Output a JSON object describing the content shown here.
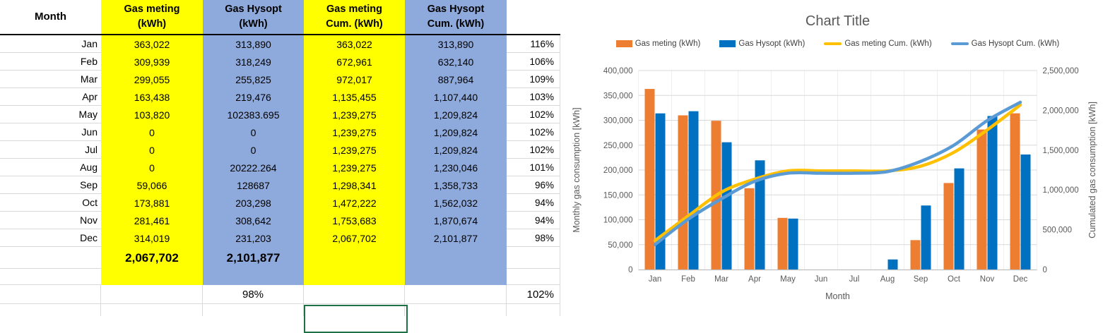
{
  "table": {
    "header": {
      "month_label": "Month",
      "cols": [
        {
          "line1": "Gas meting",
          "line2": "(kWh)",
          "fill": "#FFFF00"
        },
        {
          "line1": "Gas Hysopt",
          "line2": "(kWh)",
          "fill": "#8EA9DB"
        },
        {
          "line1": "Gas meting",
          "line2": "Cum. (kWh)",
          "fill": "#FFFF00"
        },
        {
          "line1": "Gas Hysopt",
          "line2": "Cum. (kWh)",
          "fill": "#8EA9DB"
        }
      ]
    },
    "rows": [
      {
        "month": "Jan",
        "meting": "363,022",
        "hysopt": "313,890",
        "meting_cum": "363,022",
        "hysopt_cum": "313,890",
        "pct": "116%"
      },
      {
        "month": "Feb",
        "meting": "309,939",
        "hysopt": "318,249",
        "meting_cum": "672,961",
        "hysopt_cum": "632,140",
        "pct": "106%"
      },
      {
        "month": "Mar",
        "meting": "299,055",
        "hysopt": "255,825",
        "meting_cum": "972,017",
        "hysopt_cum": "887,964",
        "pct": "109%"
      },
      {
        "month": "Apr",
        "meting": "163,438",
        "hysopt": "219,476",
        "meting_cum": "1,135,455",
        "hysopt_cum": "1,107,440",
        "pct": "103%"
      },
      {
        "month": "May",
        "meting": "103,820",
        "hysopt": "102383.695",
        "meting_cum": "1,239,275",
        "hysopt_cum": "1,209,824",
        "pct": "102%"
      },
      {
        "month": "Jun",
        "meting": "0",
        "hysopt": "0",
        "meting_cum": "1,239,275",
        "hysopt_cum": "1,209,824",
        "pct": "102%"
      },
      {
        "month": "Jul",
        "meting": "0",
        "hysopt": "0",
        "meting_cum": "1,239,275",
        "hysopt_cum": "1,209,824",
        "pct": "102%"
      },
      {
        "month": "Aug",
        "meting": "0",
        "hysopt": "20222.264",
        "meting_cum": "1,239,275",
        "hysopt_cum": "1,230,046",
        "pct": "101%"
      },
      {
        "month": "Sep",
        "meting": "59,066",
        "hysopt": "128687",
        "meting_cum": "1,298,341",
        "hysopt_cum": "1,358,733",
        "pct": "96%"
      },
      {
        "month": "Oct",
        "meting": "173,881",
        "hysopt": "203,298",
        "meting_cum": "1,472,222",
        "hysopt_cum": "1,562,032",
        "pct": "94%"
      },
      {
        "month": "Nov",
        "meting": "281,461",
        "hysopt": "308,642",
        "meting_cum": "1,753,683",
        "hysopt_cum": "1,870,674",
        "pct": "94%"
      },
      {
        "month": "Dec",
        "meting": "314,019",
        "hysopt": "231,203",
        "meting_cum": "2,067,702",
        "hysopt_cum": "2,101,877",
        "pct": "98%"
      }
    ],
    "totals": {
      "meting": "2,067,702",
      "hysopt": "2,101,877"
    },
    "footer": {
      "hysopt_pct": "98%",
      "right_pct": "102%"
    },
    "colors": {
      "yellow_fill": "#FFFF00",
      "blue_fill": "#8EA9DB",
      "gridline": "#d9d9d9",
      "selection_green": "#1F7145"
    }
  },
  "chart_data": {
    "type": "combo",
    "title": "Chart Title",
    "categories": [
      "Jan",
      "Feb",
      "Mar",
      "Apr",
      "May",
      "Jun",
      "Jul",
      "Aug",
      "Sep",
      "Oct",
      "Nov",
      "Dec"
    ],
    "series": [
      {
        "name": "Gas meting (kWh)",
        "type": "bar",
        "axis": "primary",
        "color": "#ED7D31",
        "values": [
          363022,
          309939,
          299055,
          163438,
          103820,
          0,
          0,
          0,
          59066,
          173881,
          281461,
          314019
        ]
      },
      {
        "name": "Gas Hysopt (kWh)",
        "type": "bar",
        "axis": "primary",
        "color": "#0070C0",
        "values": [
          313890,
          318249,
          255825,
          219476,
          102383.695,
          0,
          0,
          20222.264,
          128687,
          203298,
          308642,
          231203
        ]
      },
      {
        "name": "Gas meting Cum. (kWh)",
        "type": "line",
        "axis": "secondary",
        "color": "#FFC000",
        "values": [
          363022,
          672961,
          972017,
          1135455,
          1239275,
          1239275,
          1239275,
          1239275,
          1298341,
          1472222,
          1753683,
          2067702
        ]
      },
      {
        "name": "Gas Hysopt Cum. (kWh)",
        "type": "line",
        "axis": "secondary",
        "color": "#5B9BD5",
        "values": [
          313890,
          632140,
          887964,
          1107440,
          1209824,
          1209824,
          1209824,
          1230046,
          1358733,
          1562032,
          1870674,
          2101877
        ]
      }
    ],
    "xlabel": "Month",
    "ylabel_left": "Monthly gas consumption [kWh]",
    "ylabel_right": "Cumulated gas consumption [kWh]",
    "ylim_left": [
      0,
      400000
    ],
    "ytick_step_left": 50000,
    "ylim_right": [
      0,
      2500000
    ],
    "ytick_step_right": 500000,
    "grid": true,
    "legend_position": "top",
    "text_colors": {
      "title": "#595959",
      "ticks": "#595959",
      "axis_titles": "#595959",
      "legend": "#404040"
    },
    "gridline_color": "#D9D9D9"
  }
}
